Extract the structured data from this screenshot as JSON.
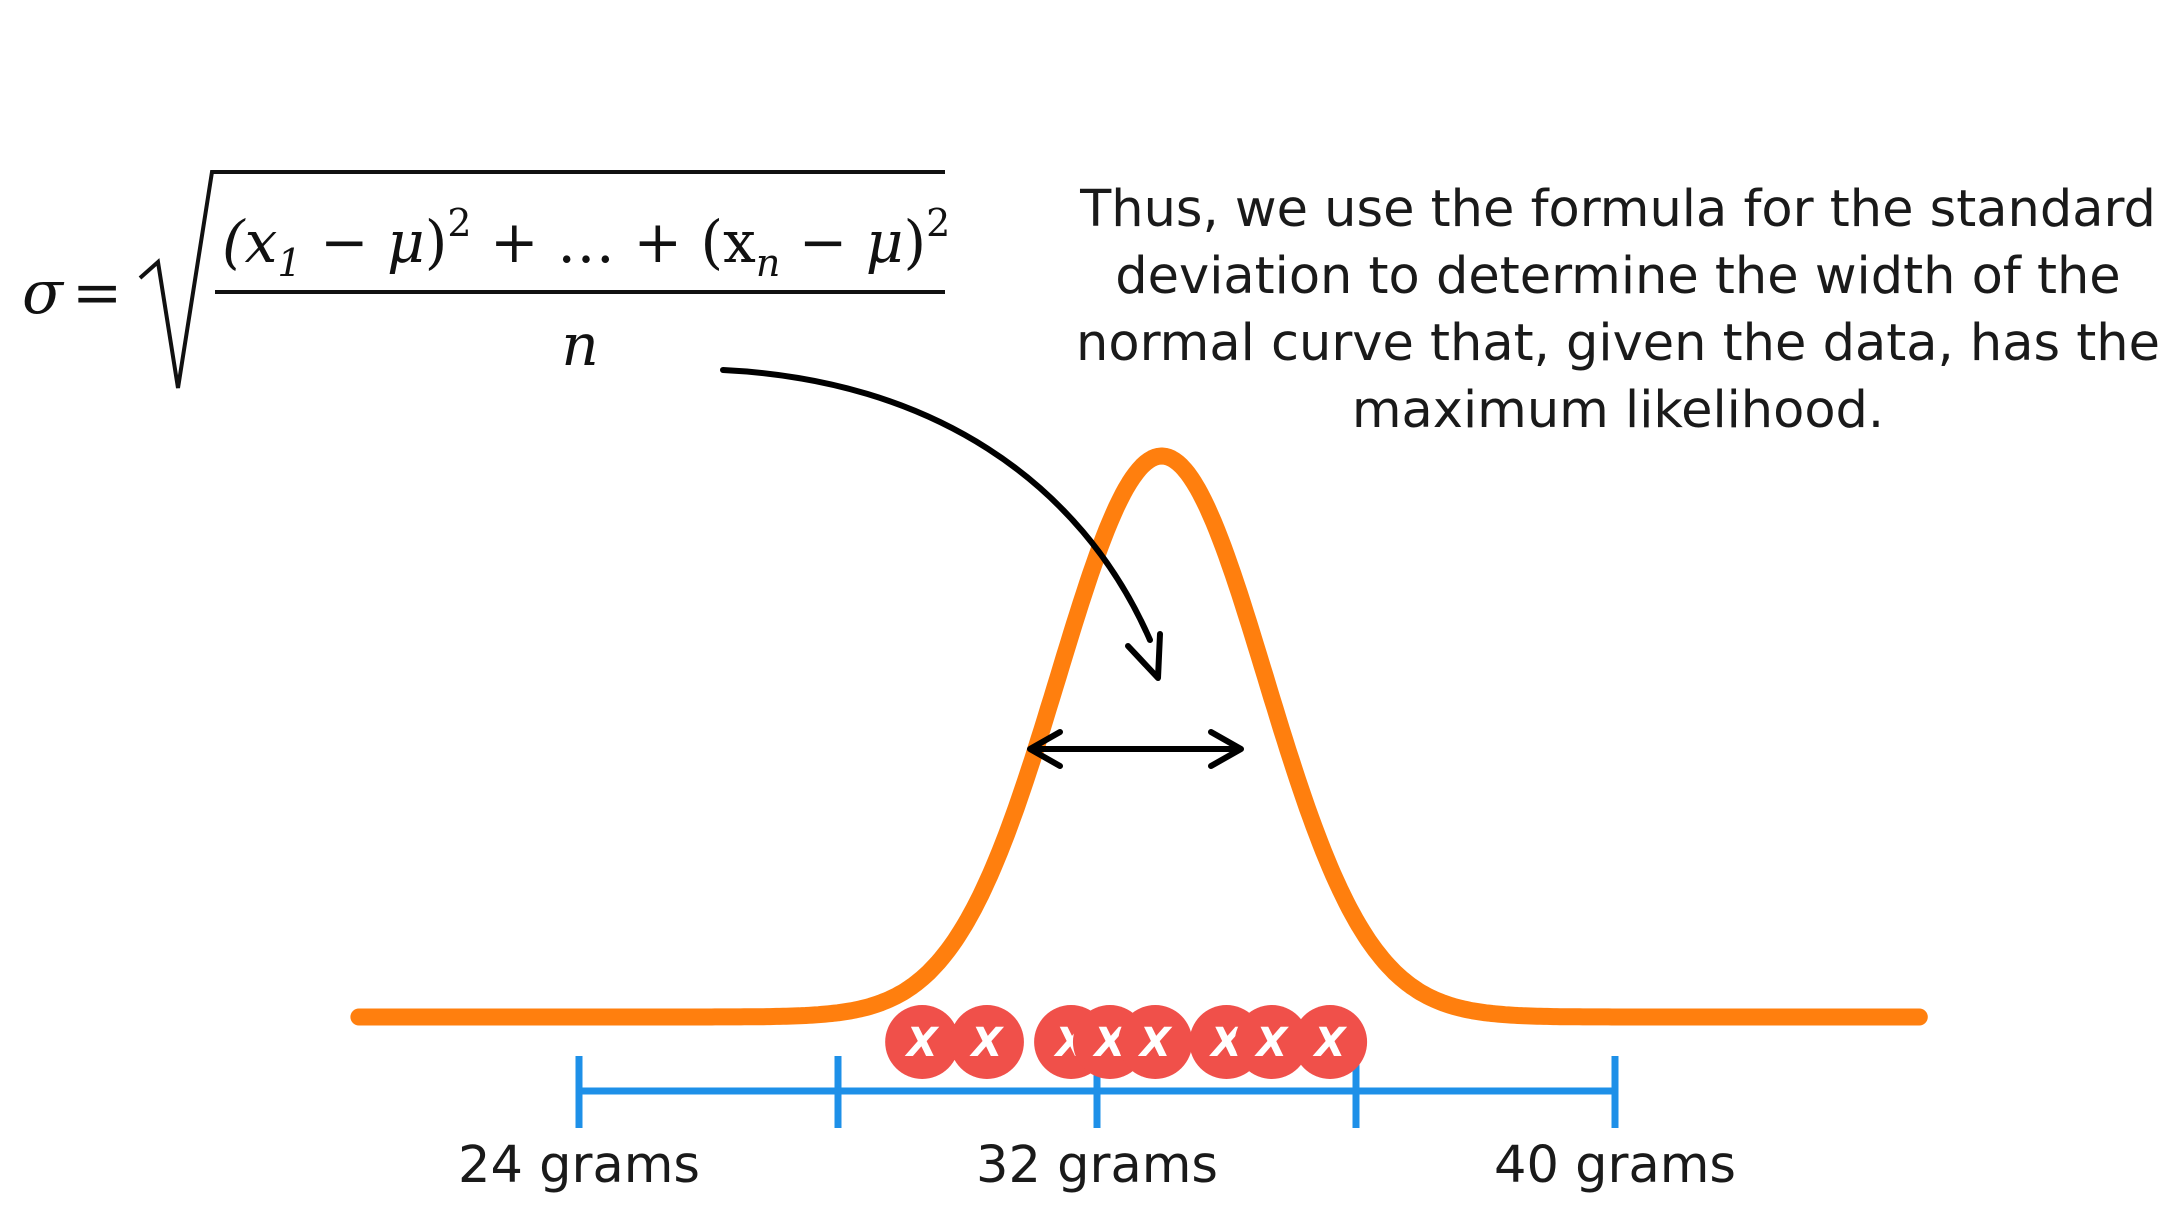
{
  "formula": {
    "lhs": "σ",
    "equals": "=",
    "numerator_parts": [
      "(x",
      "1",
      " − ",
      "μ",
      ")",
      "2",
      " + … + (x",
      "n",
      " − ",
      "μ",
      ")",
      "2"
    ],
    "denominator": "n"
  },
  "caption": {
    "lines": [
      "Thus, we use the formula for the standard",
      "deviation to determine the width of the",
      "normal curve that, given the data, has the",
      "maximum likelihood."
    ]
  },
  "axis": {
    "labels": [
      "24 grams",
      "32 grams",
      "40 grams"
    ],
    "ticks": [
      24,
      28,
      32,
      36,
      40
    ],
    "color": "#1e90e8"
  },
  "curve": {
    "color": "#ff7f0e",
    "mean": 33,
    "sd": 1.6,
    "x_range": [
      16,
      45
    ]
  },
  "data_points": {
    "mark": "X",
    "color": "#f0504a",
    "values": [
      29.3,
      30.3,
      31.6,
      32.2,
      32.9,
      34.0,
      34.7,
      35.6
    ]
  },
  "annotation": {
    "arrow_color": "#000000",
    "width_arrow_color": "#000000"
  }
}
